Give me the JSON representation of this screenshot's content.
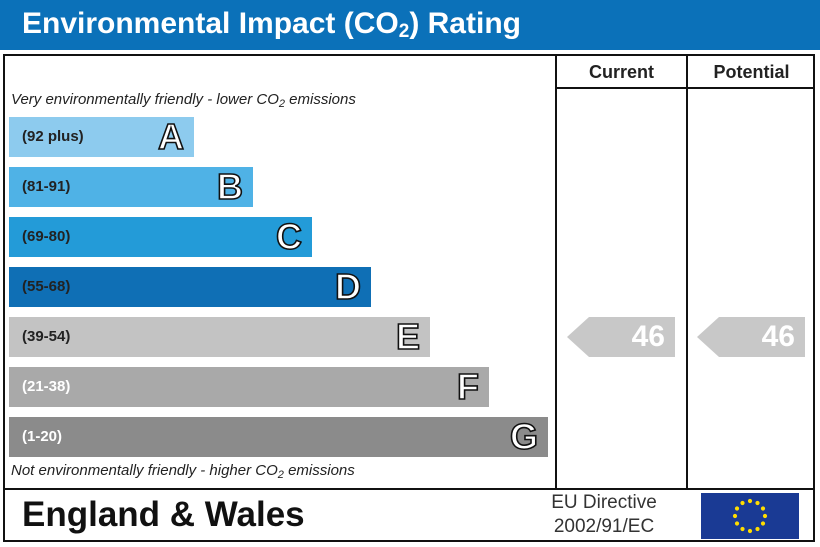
{
  "header": {
    "title_main": "Environmental Impact (CO",
    "title_sub": "2",
    "title_end": ") Rating"
  },
  "columns": {
    "current": "Current",
    "potential": "Potential"
  },
  "captions": {
    "top_main": "Very environmentally friendly - lower CO",
    "top_sub": "2",
    "top_end": " emissions",
    "bottom_main": "Not environmentally friendly - higher CO",
    "bottom_sub": "2",
    "bottom_end": " emissions"
  },
  "chart_data": {
    "type": "bar",
    "categories": [
      "A",
      "B",
      "C",
      "D",
      "E",
      "F",
      "G"
    ],
    "bands": [
      {
        "letter": "A",
        "range": "(92 plus)",
        "color": "#8dcbee",
        "range_color": "#222222"
      },
      {
        "letter": "B",
        "range": "(81-91)",
        "color": "#4fb2e6",
        "range_color": "#222222"
      },
      {
        "letter": "C",
        "range": "(69-80)",
        "color": "#239bd8",
        "range_color": "#222222"
      },
      {
        "letter": "D",
        "range": "(55-68)",
        "color": "#0f6fb5",
        "range_color": "#222222"
      },
      {
        "letter": "E",
        "range": "(39-54)",
        "color": "#c3c3c3",
        "range_color": "#222222"
      },
      {
        "letter": "F",
        "range": "(21-38)",
        "color": "#a9a9a9",
        "range_color": "#ffffff"
      },
      {
        "letter": "G",
        "range": "(1-20)",
        "color": "#8b8b8b",
        "range_color": "#ffffff"
      }
    ],
    "current": {
      "value": "46",
      "band": "E"
    },
    "potential": {
      "value": "46",
      "band": "E"
    },
    "arrow_color": "#c8c8c8"
  },
  "footer": {
    "region": "England & Wales",
    "directive_line1": "EU Directive",
    "directive_line2": "2002/91/EC",
    "flag_blue": "#1a3a94",
    "flag_star": "#ffdd00",
    "flag_icon": "eu-flag-icon"
  }
}
